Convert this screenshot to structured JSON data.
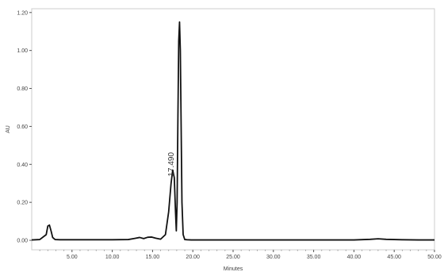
{
  "chart_data": {
    "type": "line",
    "xlabel": "Minutes",
    "ylabel": "AU",
    "xlim": [
      0,
      50
    ],
    "ylim": [
      -0.05,
      1.22
    ],
    "x_ticks": [
      5,
      10,
      15,
      20,
      25,
      30,
      35,
      40,
      45,
      50
    ],
    "x_tick_labels": [
      "5.00",
      "10.00",
      "15.00",
      "20.00",
      "25.00",
      "30.00",
      "35.00",
      "40.00",
      "45.00",
      "50.00"
    ],
    "y_ticks": [
      0,
      0.2,
      0.4,
      0.6,
      0.8,
      1.0,
      1.2
    ],
    "y_tick_labels": [
      "0.00",
      "0.20",
      "0.40",
      "0.60",
      "0.80",
      "1.00",
      "1.20"
    ],
    "grid": false,
    "series": [
      {
        "color": "#111111",
        "x": [
          0.0,
          1.0,
          1.8,
          2.0,
          2.2,
          2.4,
          2.6,
          2.9,
          3.5,
          5.0,
          8.0,
          10.0,
          12.0,
          12.8,
          13.4,
          13.9,
          14.4,
          14.9,
          15.4,
          16.0,
          16.6,
          17.0,
          17.3,
          17.5,
          17.7,
          17.85,
          17.95,
          18.05,
          18.15,
          18.25,
          18.35,
          18.45,
          18.55,
          18.65,
          18.8,
          19.0,
          19.3,
          19.8,
          21.0,
          25.0,
          30.0,
          35.0,
          40.0,
          42.0,
          43.0,
          44.0,
          46.0,
          48.0,
          50.0
        ],
        "y": [
          0.002,
          0.004,
          0.03,
          0.075,
          0.08,
          0.05,
          0.015,
          0.004,
          0.003,
          0.003,
          0.003,
          0.003,
          0.004,
          0.01,
          0.015,
          0.009,
          0.016,
          0.017,
          0.011,
          0.006,
          0.03,
          0.15,
          0.3,
          0.37,
          0.33,
          0.15,
          0.05,
          0.2,
          0.65,
          1.05,
          1.15,
          1.0,
          0.6,
          0.2,
          0.03,
          0.004,
          0.003,
          0.002,
          0.002,
          0.002,
          0.002,
          0.002,
          0.002,
          0.005,
          0.008,
          0.005,
          0.003,
          0.002,
          0.002
        ]
      }
    ],
    "annotations": [
      {
        "text": "17.490",
        "x": 17.6,
        "y": 0.4
      }
    ]
  }
}
